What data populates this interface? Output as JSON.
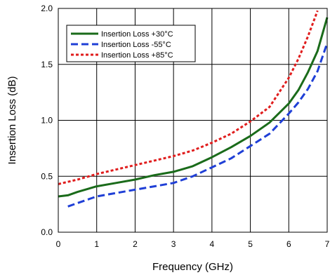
{
  "chart_data": {
    "type": "line",
    "title": "",
    "xlabel": "Frequency (GHz)",
    "ylabel": "Insertion Loss (dB)",
    "xlim": [
      0,
      7
    ],
    "ylim": [
      0.0,
      2.0
    ],
    "x_ticks": [
      0,
      1,
      2,
      3,
      4,
      5,
      6,
      7
    ],
    "x_tick_labels": [
      "0",
      "1",
      "2",
      "3",
      "4",
      "5",
      "6",
      "7"
    ],
    "y_ticks": [
      0.0,
      0.5,
      1.0,
      1.5,
      2.0
    ],
    "y_tick_labels": [
      "0.0",
      "0.5",
      "1.0",
      "1.5",
      "2.0"
    ],
    "grid": true,
    "legend_position": "top-left",
    "series": [
      {
        "name": "Insertion Loss +30°C",
        "color": "#1a6b1a",
        "dash": "solid",
        "x": [
          0,
          0.25,
          0.5,
          1,
          1.5,
          2,
          2.5,
          3,
          3.5,
          4,
          4.5,
          5,
          5.5,
          6,
          6.25,
          6.5,
          6.75,
          7
        ],
        "y": [
          0.32,
          0.33,
          0.36,
          0.41,
          0.44,
          0.47,
          0.51,
          0.54,
          0.59,
          0.67,
          0.76,
          0.86,
          0.98,
          1.15,
          1.27,
          1.43,
          1.62,
          1.92
        ]
      },
      {
        "name": "Insertion Loss -55°C",
        "color": "#1f3fd6",
        "dash": "dash",
        "x": [
          0.25,
          0.5,
          1,
          1.5,
          2,
          2.5,
          3,
          3.5,
          4,
          4.5,
          5,
          5.5,
          6,
          6.25,
          6.5,
          6.75,
          7
        ],
        "y": [
          0.23,
          0.26,
          0.32,
          0.35,
          0.38,
          0.41,
          0.44,
          0.5,
          0.58,
          0.66,
          0.77,
          0.88,
          1.06,
          1.16,
          1.28,
          1.44,
          1.69
        ]
      },
      {
        "name": "Insertion Loss +85°C",
        "color": "#e01d1d",
        "dash": "dot",
        "x": [
          0,
          0.5,
          1,
          1.5,
          2,
          2.5,
          3,
          3.5,
          4,
          4.5,
          5,
          5.5,
          6,
          6.25,
          6.5,
          6.75
        ],
        "y": [
          0.43,
          0.47,
          0.52,
          0.56,
          0.6,
          0.64,
          0.68,
          0.73,
          0.8,
          0.88,
          0.99,
          1.12,
          1.38,
          1.55,
          1.75,
          1.98
        ]
      }
    ]
  }
}
